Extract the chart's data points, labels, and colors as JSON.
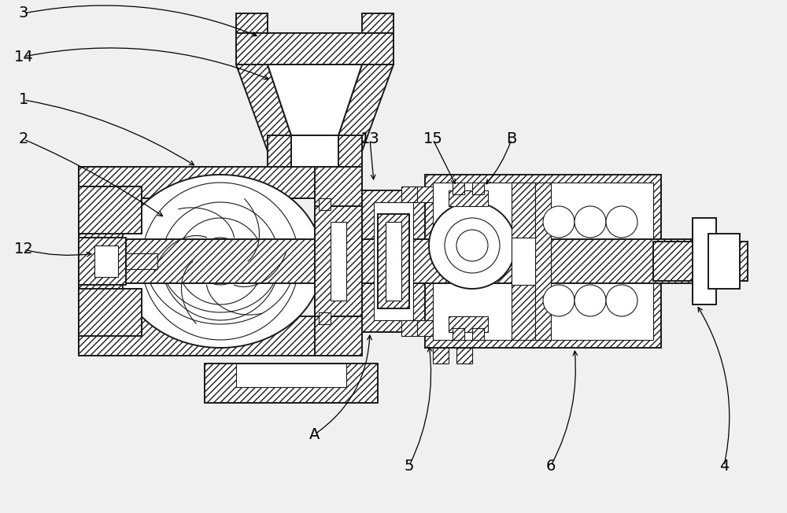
{
  "bg_color": "#f0f0f0",
  "line_color": "#1a1a1a",
  "hatch": "////",
  "lw_main": 1.4,
  "lw_thin": 0.8,
  "fontsize": 14,
  "labels": [
    "3",
    "14",
    "1",
    "2",
    "12",
    "13",
    "15",
    "B",
    "A",
    "5",
    "6",
    "4"
  ]
}
